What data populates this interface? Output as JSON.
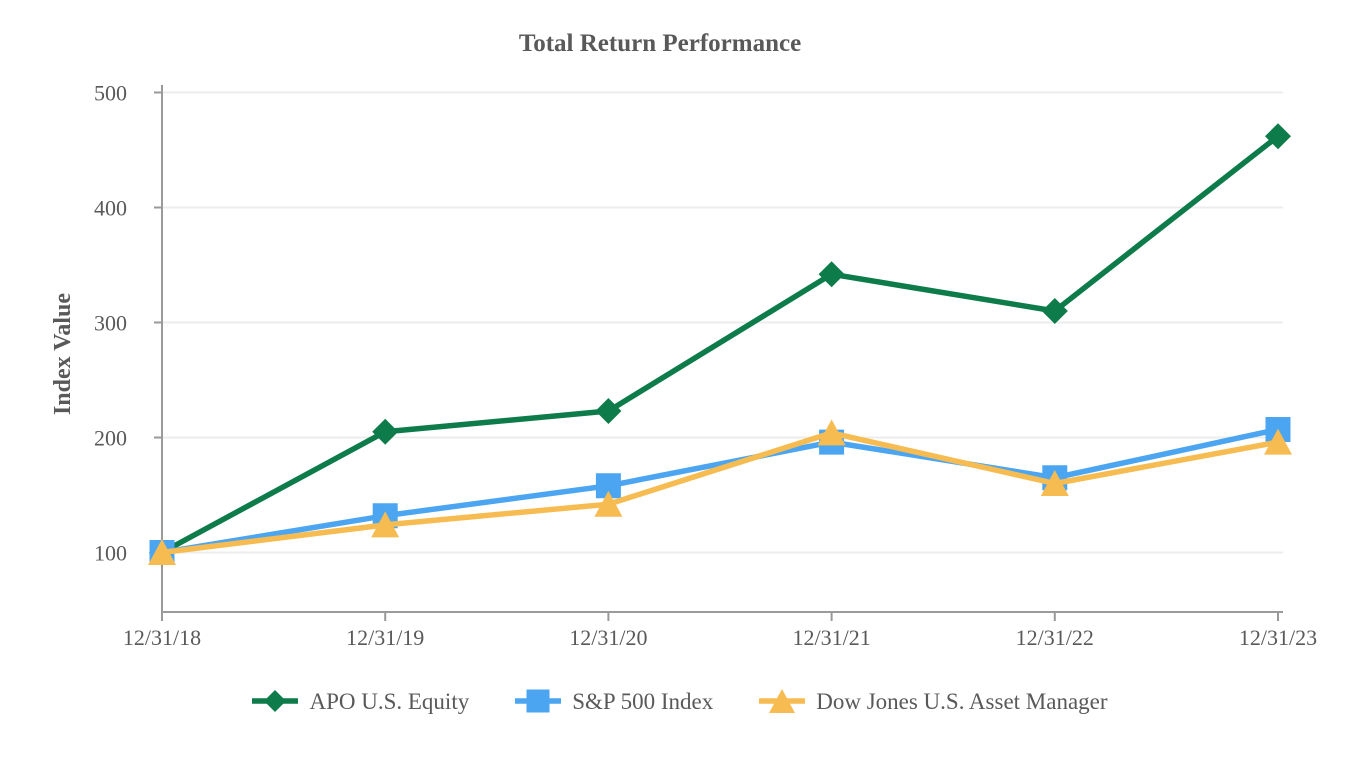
{
  "title": "Total Return Performance",
  "chart_data": {
    "type": "line",
    "title": "Total Return Performance",
    "xlabel": "",
    "ylabel": "Index Value",
    "categories": [
      "12/31/18",
      "12/31/19",
      "12/31/20",
      "12/31/21",
      "12/31/22",
      "12/31/23"
    ],
    "series": [
      {
        "name": "APO U.S. Equity",
        "marker": "diamond",
        "color": "#0e7b4a",
        "values": [
          100,
          205,
          223,
          342,
          310,
          462
        ]
      },
      {
        "name": "S&P 500 Index",
        "marker": "square",
        "color": "#4ca5f0",
        "values": [
          100,
          132,
          158,
          196,
          165,
          207
        ]
      },
      {
        "name": "Dow Jones U.S. Asset Manager",
        "marker": "triangle",
        "color": "#f6bc51",
        "values": [
          100,
          124,
          142,
          204,
          160,
          196
        ]
      }
    ],
    "yticks": [
      100,
      200,
      300,
      400,
      500
    ],
    "ylim": [
      48,
      520
    ],
    "grid": true,
    "legend_position": "bottom",
    "colors": {
      "text": "#595959",
      "axis": "#9a9a9a",
      "grid": "#ececec",
      "background": "#ffffff"
    }
  }
}
